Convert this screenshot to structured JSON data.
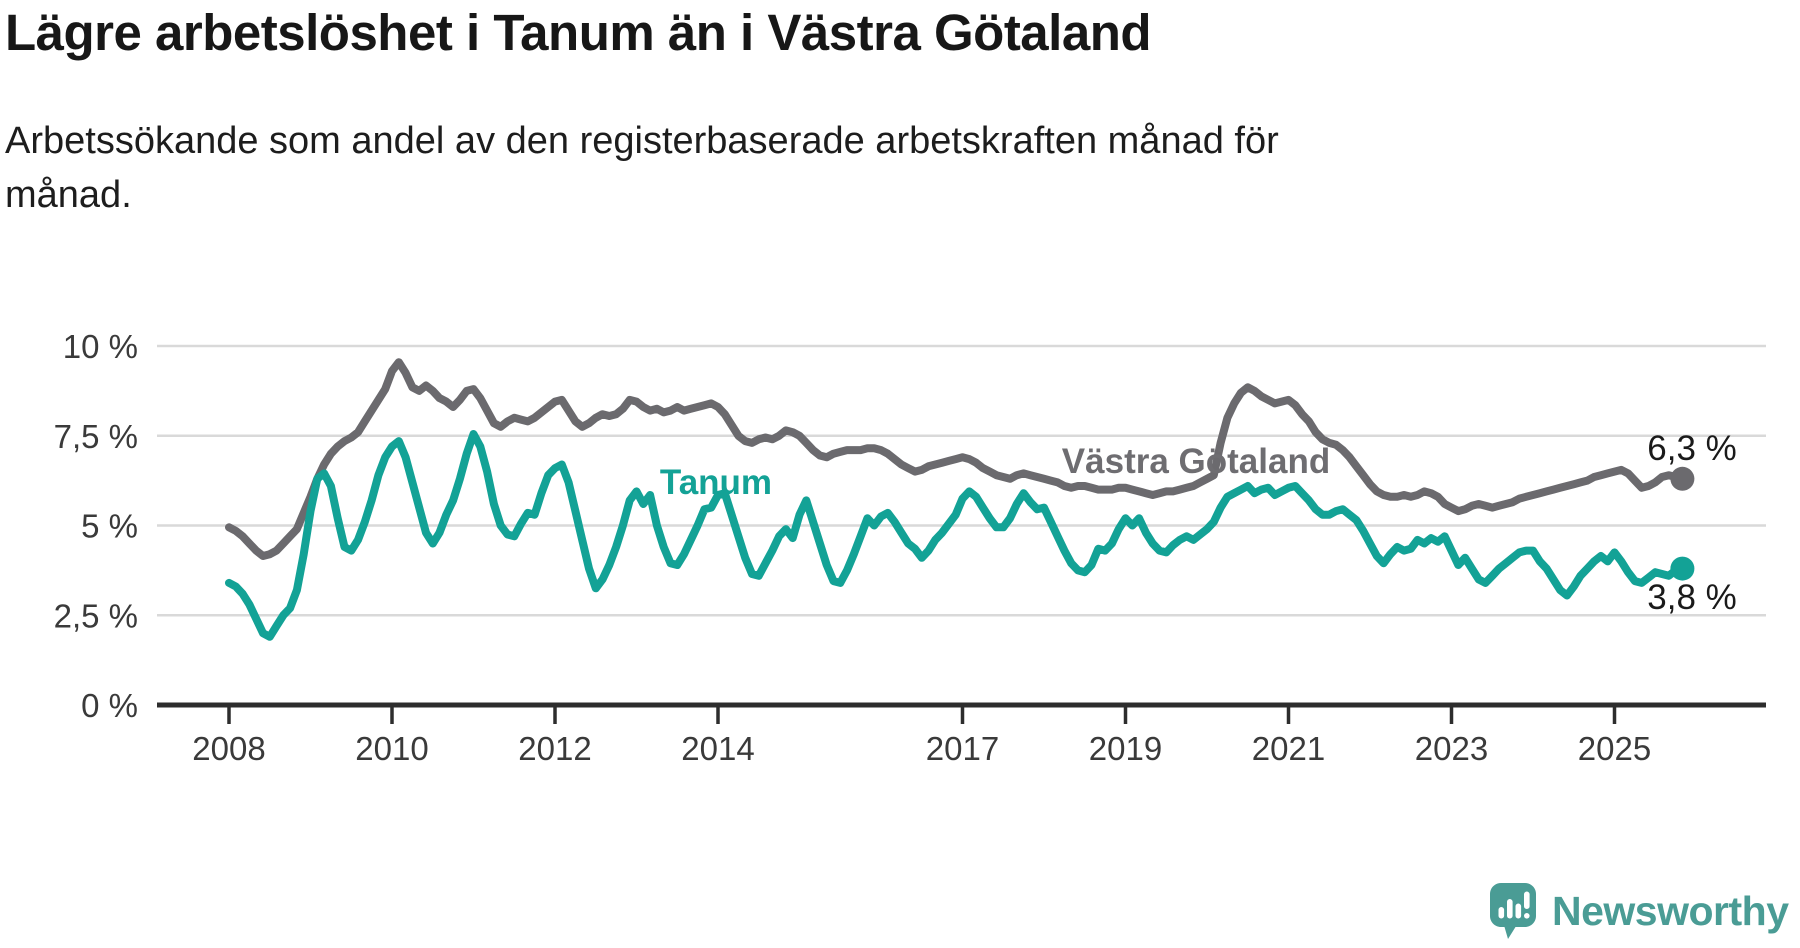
{
  "header": {
    "title": "Lägre arbetslöshet i Tanum än i Västra Götaland",
    "subtitle": "Arbetssökande som andel av den registerbaserade arbetskraften månad för\nmånad."
  },
  "chart_data": {
    "type": "line",
    "unit": "%",
    "frequency": "monthly",
    "x_start": "2008-01",
    "x_end": "2025-11",
    "ylim": [
      0,
      10
    ],
    "grid": true,
    "legend_position": "inline-labels",
    "y_ticks": [
      {
        "value": 10,
        "label": "10 %"
      },
      {
        "value": 7.5,
        "label": "7,5 %"
      },
      {
        "value": 5,
        "label": "5 %"
      },
      {
        "value": 2.5,
        "label": "2,5 %"
      },
      {
        "value": 0,
        "label": "0 %"
      }
    ],
    "x_ticks": [
      {
        "year": 2008,
        "label": "2008"
      },
      {
        "year": 2010,
        "label": "2010"
      },
      {
        "year": 2012,
        "label": "2012"
      },
      {
        "year": 2014,
        "label": "2014"
      },
      {
        "year": 2017,
        "label": "2017"
      },
      {
        "year": 2019,
        "label": "2019"
      },
      {
        "year": 2021,
        "label": "2021"
      },
      {
        "year": 2023,
        "label": "2023"
      },
      {
        "year": 2025,
        "label": "2025"
      }
    ],
    "series": [
      {
        "id": "vastra-gotaland",
        "name": "Västra Götaland",
        "color": "#6b6a6e",
        "end_label": "6,3 %",
        "values": [
          4.95,
          4.85,
          4.7,
          4.5,
          4.3,
          4.15,
          4.2,
          4.3,
          4.5,
          4.7,
          4.9,
          5.35,
          5.8,
          6.3,
          6.7,
          7.0,
          7.2,
          7.35,
          7.45,
          7.6,
          7.9,
          8.2,
          8.5,
          8.8,
          9.3,
          9.55,
          9.25,
          8.85,
          8.75,
          8.9,
          8.75,
          8.55,
          8.45,
          8.3,
          8.5,
          8.75,
          8.8,
          8.55,
          8.2,
          7.85,
          7.75,
          7.9,
          8.0,
          7.95,
          7.9,
          8.0,
          8.15,
          8.3,
          8.45,
          8.5,
          8.2,
          7.9,
          7.75,
          7.85,
          8.0,
          8.1,
          8.05,
          8.1,
          8.25,
          8.5,
          8.45,
          8.3,
          8.2,
          8.25,
          8.15,
          8.2,
          8.3,
          8.2,
          8.25,
          8.3,
          8.35,
          8.4,
          8.3,
          8.1,
          7.8,
          7.5,
          7.35,
          7.3,
          7.4,
          7.45,
          7.4,
          7.5,
          7.65,
          7.6,
          7.5,
          7.3,
          7.1,
          6.95,
          6.9,
          7.0,
          7.05,
          7.1,
          7.1,
          7.1,
          7.15,
          7.15,
          7.1,
          7.0,
          6.85,
          6.7,
          6.6,
          6.5,
          6.55,
          6.65,
          6.7,
          6.75,
          6.8,
          6.85,
          6.9,
          6.85,
          6.75,
          6.6,
          6.5,
          6.4,
          6.35,
          6.3,
          6.4,
          6.45,
          6.4,
          6.35,
          6.3,
          6.25,
          6.2,
          6.1,
          6.05,
          6.1,
          6.1,
          6.05,
          6.0,
          6.0,
          6.0,
          6.05,
          6.05,
          6.0,
          5.95,
          5.9,
          5.85,
          5.9,
          5.95,
          5.95,
          6.0,
          6.05,
          6.1,
          6.2,
          6.3,
          6.4,
          7.3,
          8.0,
          8.4,
          8.7,
          8.85,
          8.75,
          8.6,
          8.5,
          8.4,
          8.45,
          8.5,
          8.35,
          8.1,
          7.9,
          7.6,
          7.4,
          7.3,
          7.25,
          7.1,
          6.9,
          6.65,
          6.4,
          6.15,
          5.95,
          5.85,
          5.8,
          5.8,
          5.85,
          5.8,
          5.85,
          5.95,
          5.9,
          5.8,
          5.6,
          5.5,
          5.4,
          5.45,
          5.55,
          5.6,
          5.55,
          5.5,
          5.55,
          5.6,
          5.65,
          5.75,
          5.8,
          5.85,
          5.9,
          5.95,
          6.0,
          6.05,
          6.1,
          6.15,
          6.2,
          6.25,
          6.35,
          6.4,
          6.45,
          6.5,
          6.55,
          6.45,
          6.25,
          6.05,
          6.1,
          6.2,
          6.35,
          6.4,
          6.35,
          6.3
        ]
      },
      {
        "id": "tanum",
        "name": "Tanum",
        "color": "#13a296",
        "end_label": "3,8 %",
        "values": [
          3.4,
          3.3,
          3.1,
          2.8,
          2.4,
          2.0,
          1.9,
          2.2,
          2.5,
          2.7,
          3.2,
          4.2,
          5.4,
          6.3,
          6.45,
          6.1,
          5.2,
          4.4,
          4.3,
          4.6,
          5.1,
          5.7,
          6.4,
          6.9,
          7.2,
          7.35,
          6.9,
          6.2,
          5.5,
          4.8,
          4.5,
          4.8,
          5.3,
          5.7,
          6.3,
          7.0,
          7.55,
          7.2,
          6.5,
          5.6,
          5.0,
          4.75,
          4.7,
          5.05,
          5.35,
          5.3,
          5.9,
          6.4,
          6.6,
          6.7,
          6.2,
          5.4,
          4.6,
          3.8,
          3.25,
          3.5,
          3.9,
          4.4,
          5.0,
          5.7,
          5.95,
          5.6,
          5.85,
          5.0,
          4.4,
          3.95,
          3.9,
          4.2,
          4.6,
          5.0,
          5.45,
          5.5,
          5.85,
          5.9,
          5.3,
          4.7,
          4.1,
          3.65,
          3.6,
          3.95,
          4.3,
          4.7,
          4.9,
          4.65,
          5.3,
          5.7,
          5.1,
          4.5,
          3.9,
          3.45,
          3.4,
          3.75,
          4.2,
          4.7,
          5.2,
          5.0,
          5.25,
          5.35,
          5.1,
          4.8,
          4.5,
          4.35,
          4.1,
          4.3,
          4.6,
          4.8,
          5.05,
          5.3,
          5.75,
          5.95,
          5.8,
          5.5,
          5.2,
          4.95,
          4.95,
          5.2,
          5.6,
          5.9,
          5.65,
          5.45,
          5.5,
          5.1,
          4.7,
          4.3,
          3.95,
          3.75,
          3.7,
          3.9,
          4.35,
          4.3,
          4.5,
          4.9,
          5.2,
          5.0,
          5.2,
          4.8,
          4.5,
          4.3,
          4.25,
          4.45,
          4.6,
          4.7,
          4.6,
          4.75,
          4.9,
          5.1,
          5.5,
          5.8,
          5.9,
          6.0,
          6.1,
          5.9,
          6.0,
          6.05,
          5.85,
          5.95,
          6.05,
          6.1,
          5.9,
          5.7,
          5.45,
          5.3,
          5.3,
          5.4,
          5.45,
          5.3,
          5.15,
          4.85,
          4.5,
          4.15,
          3.95,
          4.2,
          4.4,
          4.3,
          4.35,
          4.6,
          4.5,
          4.65,
          4.55,
          4.7,
          4.3,
          3.9,
          4.1,
          3.8,
          3.5,
          3.4,
          3.6,
          3.8,
          3.95,
          4.1,
          4.25,
          4.3,
          4.3,
          4.0,
          3.8,
          3.5,
          3.2,
          3.05,
          3.3,
          3.6,
          3.8,
          4.0,
          4.15,
          4.0,
          4.25,
          4.0,
          3.7,
          3.45,
          3.4,
          3.55,
          3.7,
          3.65,
          3.6,
          3.75,
          3.8
        ]
      }
    ]
  },
  "colors": {
    "tanum_line": "#13a296",
    "vastra_gotaland_line": "#6b6a6e",
    "gridline": "#d9d9d9",
    "axis": "#2d2d2d",
    "tick_label": "#3a3a3a",
    "brand_teal": "#4a9c95"
  },
  "footer": {
    "brand": "Newsworthy",
    "logo_icon": "newsworthy-speech-bubble-bar-chart-icon"
  }
}
